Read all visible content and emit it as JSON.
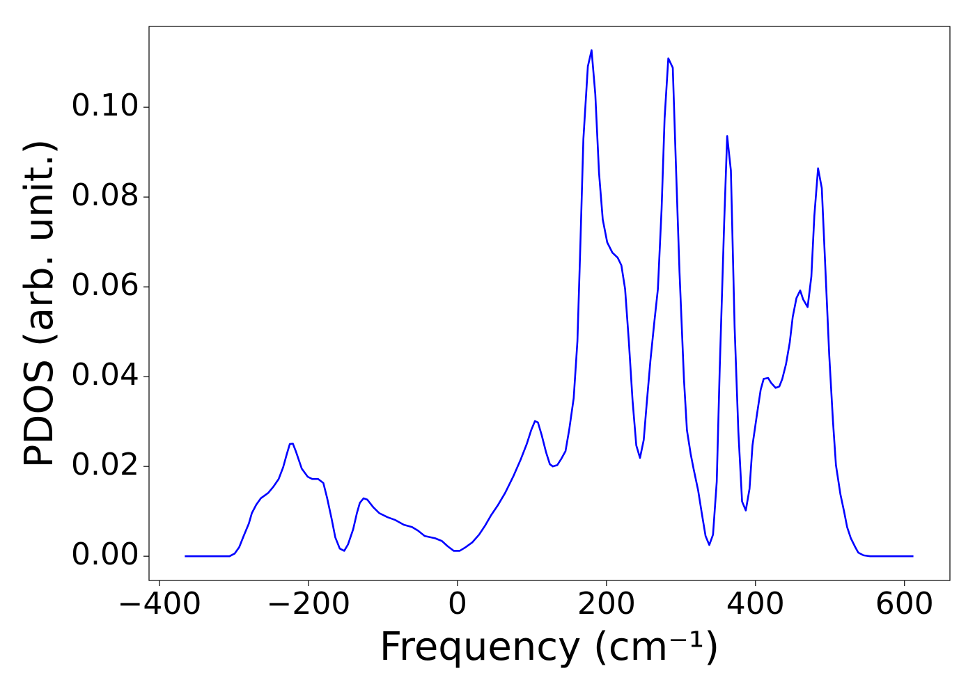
{
  "chart_data": {
    "type": "line",
    "xlabel": "Frequency (cm⁻¹)",
    "ylabel": "PDOS (arb. unit.)",
    "xlim": [
      -414,
      661
    ],
    "ylim": [
      -0.0054,
      0.118
    ],
    "xticks": [
      {
        "value": -400,
        "label": "−400"
      },
      {
        "value": -200,
        "label": "−200"
      },
      0,
      200,
      400,
      600
    ],
    "yticks": [
      {
        "value": 0,
        "label": "0.00"
      },
      {
        "value": 0.02,
        "label": "0.02"
      },
      {
        "value": 0.04,
        "label": "0.04"
      },
      {
        "value": 0.06,
        "label": "0.06"
      },
      {
        "value": 0.08,
        "label": "0.08"
      },
      {
        "value": 0.1,
        "label": "0.10"
      }
    ],
    "grid": false,
    "x": [
      -366,
      -306,
      -299,
      -293,
      -287,
      -280,
      -276,
      -270,
      -264,
      -254,
      -247,
      -240,
      -234,
      -229,
      -225,
      -221,
      -217,
      -209,
      -201,
      -195,
      -187,
      -180,
      -175,
      -169,
      -164,
      -158,
      -152,
      -147,
      -140,
      -135,
      -131,
      -126,
      -121,
      -113,
      -105,
      -94,
      -84,
      -72,
      -61,
      -53,
      -44,
      -30,
      -21,
      -13,
      -5,
      3,
      10,
      20,
      29,
      37,
      45,
      54,
      64,
      75,
      85,
      93,
      99,
      104,
      108,
      113,
      119,
      124,
      128,
      134,
      139,
      145,
      150,
      156,
      161,
      165,
      169,
      175,
      180,
      185,
      190,
      195,
      201,
      208,
      215,
      220,
      225,
      230,
      235,
      240,
      245,
      250,
      254,
      259,
      264,
      269,
      274,
      278,
      283,
      289,
      293,
      298,
      304,
      308,
      313,
      317,
      323,
      328,
      333,
      338,
      343,
      348,
      352,
      358,
      362,
      367,
      372,
      377,
      382,
      387,
      392,
      396,
      402,
      407,
      411,
      417,
      421,
      427,
      432,
      436,
      441,
      446,
      450,
      455,
      460,
      464,
      470,
      475,
      479,
      484,
      489,
      494,
      499,
      504,
      508,
      514,
      519,
      523,
      528,
      534,
      538,
      545,
      554,
      612
    ],
    "series": [
      {
        "name": "PDOS",
        "color": "#0000ff",
        "values": [
          0,
          0,
          0.0006,
          0.002,
          0.0045,
          0.0073,
          0.0096,
          0.0115,
          0.0129,
          0.0141,
          0.0155,
          0.0172,
          0.0198,
          0.0228,
          0.025,
          0.0251,
          0.0234,
          0.0195,
          0.0177,
          0.0172,
          0.0172,
          0.0163,
          0.013,
          0.0084,
          0.0042,
          0.0017,
          0.0012,
          0.0026,
          0.006,
          0.0096,
          0.0119,
          0.0129,
          0.0126,
          0.0109,
          0.0096,
          0.0087,
          0.0081,
          0.007,
          0.0065,
          0.0057,
          0.0045,
          0.004,
          0.0034,
          0.0022,
          0.0012,
          0.0012,
          0.0019,
          0.0031,
          0.0048,
          0.0068,
          0.0091,
          0.0113,
          0.0141,
          0.0178,
          0.0216,
          0.025,
          0.0281,
          0.0301,
          0.0298,
          0.027,
          0.0231,
          0.0205,
          0.02,
          0.0203,
          0.0216,
          0.0234,
          0.0282,
          0.0352,
          0.0479,
          0.0696,
          0.0929,
          0.1091,
          0.1127,
          0.1029,
          0.0854,
          0.075,
          0.0699,
          0.0676,
          0.0665,
          0.0648,
          0.0595,
          0.0479,
          0.0347,
          0.0247,
          0.0219,
          0.0259,
          0.034,
          0.0436,
          0.0518,
          0.0595,
          0.0774,
          0.0975,
          0.1109,
          0.1088,
          0.0882,
          0.0634,
          0.0394,
          0.0281,
          0.0228,
          0.0194,
          0.0147,
          0.0095,
          0.0045,
          0.0025,
          0.0048,
          0.0166,
          0.0417,
          0.0743,
          0.0936,
          0.0859,
          0.051,
          0.0278,
          0.0122,
          0.0102,
          0.015,
          0.0247,
          0.0316,
          0.0371,
          0.0395,
          0.0397,
          0.0386,
          0.0375,
          0.0378,
          0.0395,
          0.0428,
          0.0476,
          0.0533,
          0.0575,
          0.0592,
          0.0572,
          0.0555,
          0.0623,
          0.0758,
          0.0864,
          0.082,
          0.0634,
          0.0448,
          0.0301,
          0.0203,
          0.0138,
          0.0099,
          0.0065,
          0.004,
          0.002,
          0.0008,
          0.0002,
          0,
          0
        ]
      }
    ]
  }
}
